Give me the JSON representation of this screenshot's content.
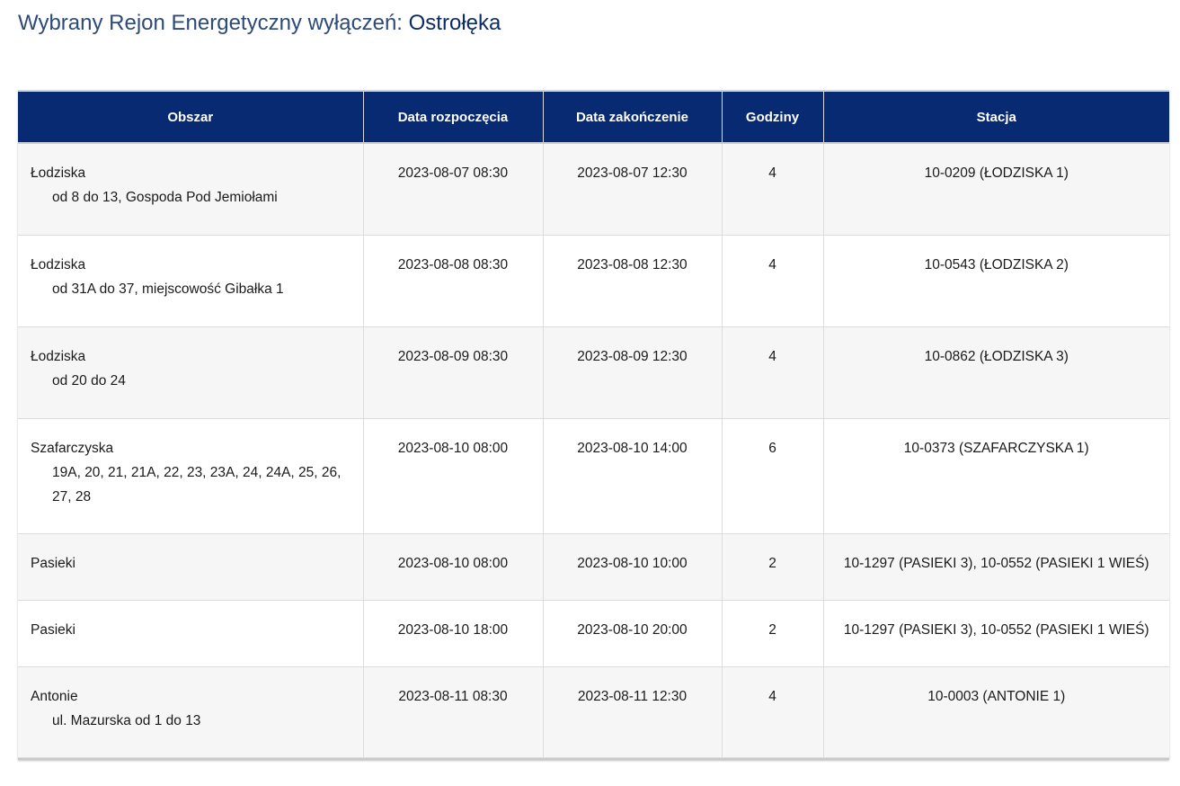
{
  "heading": {
    "label": "Wybrany Rejon Energetyczny wyłączeń:",
    "region": "Ostrołęka"
  },
  "table": {
    "columns": [
      "Obszar",
      "Data rozpoczęcia",
      "Data zakończenie",
      "Godziny",
      "Stacja"
    ],
    "rows": [
      {
        "area": "Łodziska",
        "detail": "od 8 do 13, Gospoda Pod Jemiołami",
        "start": "2023-08-07 08:30",
        "end": "2023-08-07 12:30",
        "hours": "4",
        "station": "10-0209 (ŁODZISKA 1)"
      },
      {
        "area": "Łodziska",
        "detail": "od 31A do 37, miejscowość Gibałka 1",
        "start": "2023-08-08 08:30",
        "end": "2023-08-08 12:30",
        "hours": "4",
        "station": "10-0543 (ŁODZISKA 2)"
      },
      {
        "area": "Łodziska",
        "detail": "od 20 do 24",
        "start": "2023-08-09 08:30",
        "end": "2023-08-09 12:30",
        "hours": "4",
        "station": "10-0862 (ŁODZISKA 3)"
      },
      {
        "area": "Szafarczyska",
        "detail": "19A, 20, 21, 21A, 22, 23, 23A, 24, 24A, 25, 26, 27, 28",
        "start": "2023-08-10 08:00",
        "end": "2023-08-10 14:00",
        "hours": "6",
        "station": "10-0373 (SZAFARCZYSKA 1)"
      },
      {
        "area": "Pasieki",
        "detail": "",
        "start": "2023-08-10 08:00",
        "end": "2023-08-10 10:00",
        "hours": "2",
        "station": "10-1297 (PASIEKI 3), 10-0552 (PASIEKI 1 WIEŚ)"
      },
      {
        "area": "Pasieki",
        "detail": "",
        "start": "2023-08-10 18:00",
        "end": "2023-08-10 20:00",
        "hours": "2",
        "station": "10-1297 (PASIEKI 3), 10-0552 (PASIEKI 1 WIEŚ)"
      },
      {
        "area": "Antonie",
        "detail": "ul. Mazurska od 1 do 13",
        "start": "2023-08-11 08:30",
        "end": "2023-08-11 12:30",
        "hours": "4",
        "station": "10-0003 (ANTONIE 1)"
      }
    ]
  }
}
